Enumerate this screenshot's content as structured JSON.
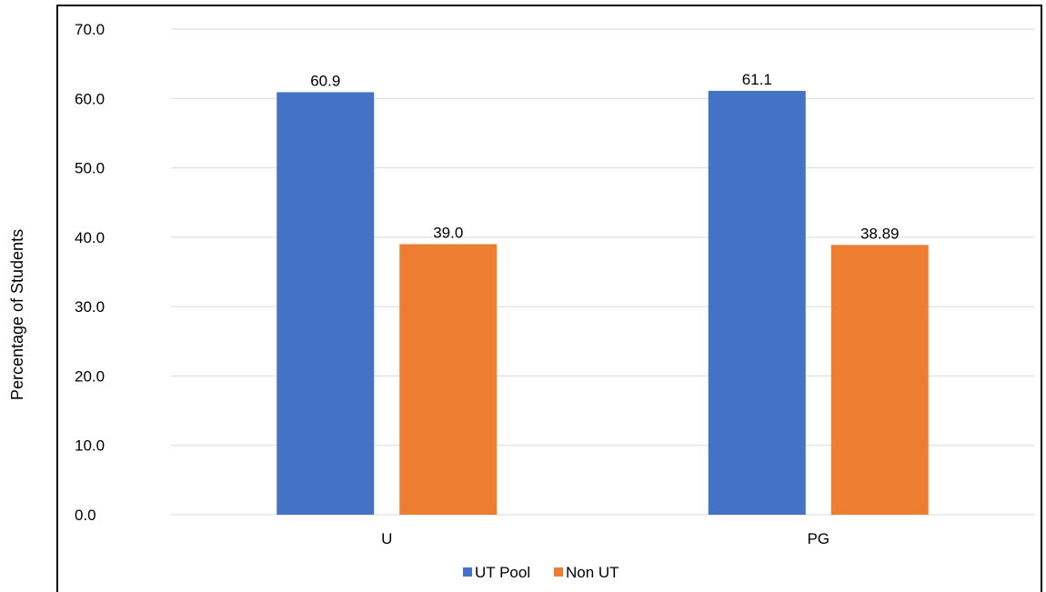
{
  "chart_data": {
    "type": "bar",
    "categories": [
      "U",
      "PG"
    ],
    "series": [
      {
        "name": "UT Pool",
        "values": [
          60.9,
          61.1
        ],
        "labels": [
          "60.9",
          "61.1"
        ],
        "color": "#4472C4"
      },
      {
        "name": "Non UT",
        "values": [
          39.0,
          38.89
        ],
        "labels": [
          "39.0",
          "38.89"
        ],
        "color": "#ED7D31"
      }
    ],
    "ylabel": "Percentage of Students",
    "ylim": [
      0,
      70
    ],
    "yticks": [
      "0.0",
      "10.0",
      "20.0",
      "30.0",
      "40.0",
      "50.0",
      "60.0",
      "70.0"
    ],
    "grid": true,
    "gridline_color": "#D9D9D9",
    "legend": "bottom"
  }
}
